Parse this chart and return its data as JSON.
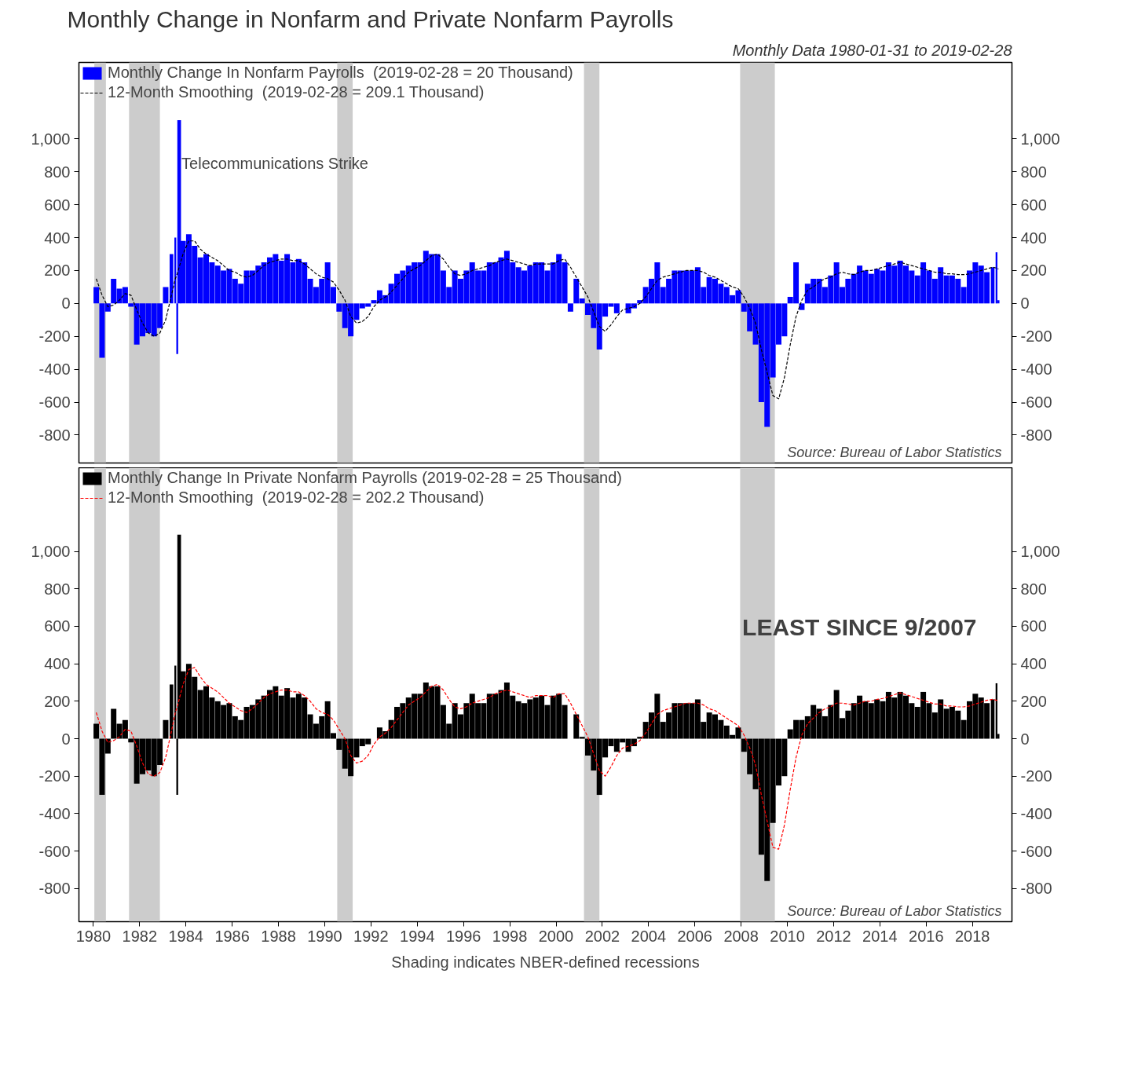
{
  "chart_data": [
    {
      "type": "bar",
      "title": "Monthly Change in Nonfarm and Private Nonfarm Payrolls",
      "subtitle": "Monthly Data 1980-01-31 to 2019-02-28",
      "x": [
        "1980-02",
        "1980-05",
        "1980-08",
        "1980-11",
        "1981-02",
        "1981-05",
        "1981-08",
        "1981-11",
        "1982-02",
        "1982-05",
        "1982-08",
        "1982-11",
        "1983-02",
        "1983-05",
        "1983-07",
        "1983-08",
        "1983-09",
        "1983-11",
        "1984-02",
        "1984-05",
        "1984-08",
        "1984-11",
        "1985-02",
        "1985-05",
        "1985-08",
        "1985-11",
        "1986-02",
        "1986-05",
        "1986-08",
        "1986-11",
        "1987-02",
        "1987-05",
        "1987-08",
        "1987-11",
        "1988-02",
        "1988-05",
        "1988-08",
        "1988-11",
        "1989-02",
        "1989-05",
        "1989-08",
        "1989-11",
        "1990-02",
        "1990-05",
        "1990-08",
        "1990-11",
        "1991-02",
        "1991-05",
        "1991-08",
        "1991-11",
        "1992-02",
        "1992-05",
        "1992-08",
        "1992-11",
        "1993-02",
        "1993-05",
        "1993-08",
        "1993-11",
        "1994-02",
        "1994-05",
        "1994-08",
        "1994-11",
        "1995-02",
        "1995-05",
        "1995-08",
        "1995-11",
        "1996-02",
        "1996-05",
        "1996-08",
        "1996-11",
        "1997-02",
        "1997-05",
        "1997-08",
        "1997-11",
        "1998-02",
        "1998-05",
        "1998-08",
        "1998-11",
        "1999-02",
        "1999-05",
        "1999-08",
        "1999-11",
        "2000-02",
        "2000-05",
        "2000-08",
        "2000-11",
        "2001-02",
        "2001-05",
        "2001-08",
        "2001-11",
        "2002-02",
        "2002-05",
        "2002-08",
        "2002-11",
        "2003-02",
        "2003-05",
        "2003-08",
        "2003-11",
        "2004-02",
        "2004-05",
        "2004-08",
        "2004-11",
        "2005-02",
        "2005-05",
        "2005-08",
        "2005-11",
        "2006-02",
        "2006-05",
        "2006-08",
        "2006-11",
        "2007-02",
        "2007-05",
        "2007-08",
        "2007-11",
        "2008-02",
        "2008-05",
        "2008-08",
        "2008-11",
        "2009-02",
        "2009-05",
        "2009-08",
        "2009-11",
        "2010-02",
        "2010-05",
        "2010-08",
        "2010-11",
        "2011-02",
        "2011-05",
        "2011-08",
        "2011-11",
        "2012-02",
        "2012-05",
        "2012-08",
        "2012-11",
        "2013-02",
        "2013-05",
        "2013-08",
        "2013-11",
        "2014-02",
        "2014-05",
        "2014-08",
        "2014-11",
        "2015-02",
        "2015-05",
        "2015-08",
        "2015-11",
        "2016-02",
        "2016-05",
        "2016-08",
        "2016-11",
        "2017-02",
        "2017-05",
        "2017-08",
        "2017-11",
        "2018-02",
        "2018-05",
        "2018-08",
        "2018-11",
        "2019-01",
        "2019-02"
      ],
      "series": [
        {
          "name": "Monthly Change In Nonfarm Payrolls  (2019-02-28 = 20 Thousand)",
          "color": "#0000ff",
          "values": [
            100,
            -330,
            -50,
            150,
            90,
            100,
            -20,
            -250,
            -200,
            -180,
            -200,
            -150,
            100,
            300,
            400,
            -308,
            1114,
            380,
            420,
            350,
            280,
            300,
            250,
            230,
            200,
            210,
            150,
            120,
            200,
            200,
            230,
            250,
            280,
            300,
            260,
            300,
            250,
            270,
            250,
            150,
            100,
            150,
            250,
            100,
            -50,
            -150,
            -200,
            -100,
            -30,
            -20,
            20,
            80,
            50,
            120,
            180,
            200,
            230,
            250,
            250,
            320,
            300,
            300,
            200,
            100,
            200,
            150,
            200,
            250,
            200,
            200,
            250,
            250,
            280,
            320,
            250,
            220,
            200,
            230,
            250,
            250,
            200,
            250,
            300,
            250,
            -50,
            150,
            30,
            -70,
            -150,
            -280,
            -80,
            -20,
            -60,
            0,
            -60,
            -30,
            20,
            100,
            150,
            250,
            100,
            150,
            200,
            200,
            200,
            200,
            220,
            100,
            160,
            150,
            120,
            100,
            50,
            80,
            -50,
            -170,
            -250,
            -600,
            -750,
            -450,
            -250,
            -200,
            40,
            250,
            -40,
            120,
            150,
            150,
            100,
            170,
            250,
            100,
            150,
            180,
            230,
            200,
            180,
            210,
            200,
            250,
            230,
            260,
            230,
            200,
            170,
            250,
            200,
            150,
            220,
            170,
            170,
            150,
            100,
            200,
            250,
            230,
            190,
            220,
            311,
            20
          ]
        },
        {
          "name": "12-Month Smoothing  (2019-02-28 = 209.1 Thousand)",
          "type": "line",
          "line_style": "dashed",
          "color": "#000000",
          "values": [
            150,
            50,
            -20,
            -10,
            20,
            60,
            50,
            -40,
            -120,
            -180,
            -200,
            -180,
            -100,
            50,
            150,
            180,
            220,
            300,
            380,
            380,
            330,
            300,
            280,
            260,
            230,
            200,
            190,
            170,
            160,
            170,
            200,
            230,
            250,
            260,
            270,
            270,
            260,
            260,
            240,
            210,
            180,
            160,
            150,
            130,
            80,
            20,
            -80,
            -120,
            -110,
            -80,
            -20,
            20,
            40,
            70,
            110,
            150,
            190,
            210,
            230,
            260,
            290,
            300,
            270,
            220,
            180,
            170,
            180,
            200,
            210,
            220,
            230,
            250,
            260,
            270,
            260,
            250,
            240,
            230,
            240,
            240,
            240,
            240,
            260,
            270,
            220,
            160,
            100,
            40,
            -50,
            -140,
            -170,
            -130,
            -80,
            -40,
            -30,
            -20,
            0,
            40,
            90,
            140,
            160,
            170,
            180,
            190,
            200,
            200,
            200,
            190,
            170,
            160,
            140,
            120,
            100,
            90,
            40,
            -30,
            -120,
            -280,
            -420,
            -560,
            -580,
            -450,
            -250,
            -80,
            20,
            80,
            100,
            130,
            150,
            160,
            180,
            190,
            180,
            175,
            190,
            200,
            200,
            210,
            220,
            230,
            240,
            250,
            240,
            230,
            220,
            210,
            200,
            190,
            190,
            180,
            180,
            175,
            175,
            180,
            190,
            200,
            210,
            220,
            215,
            209.1
          ]
        }
      ],
      "xlim": [
        "1979-05",
        "2019-09"
      ],
      "xticks": [
        "1980",
        "1982",
        "1984",
        "1986",
        "1988",
        "1990",
        "1992",
        "1994",
        "1996",
        "1998",
        "2000",
        "2002",
        "2004",
        "2006",
        "2008",
        "2010",
        "2012",
        "2014",
        "2016",
        "2018"
      ],
      "ylim": [
        -970,
        1465
      ],
      "yticks": [
        -800,
        -600,
        -400,
        -200,
        0,
        200,
        400,
        600,
        800,
        {
          "value": 1000,
          "label": "1,000"
        }
      ],
      "y2lim": [
        -970,
        1465
      ],
      "y2ticks": [
        -800,
        -600,
        -400,
        -200,
        0,
        200,
        400,
        600,
        800,
        {
          "value": 1000,
          "label": "1,000"
        }
      ],
      "tick_labels": "y",
      "legend": "top left",
      "grid": false,
      "bands": [
        {
          "axis": "x",
          "from": "1980-01",
          "to": "1980-07",
          "color": "#cccccc"
        },
        {
          "axis": "x",
          "from": "1981-07",
          "to": "1982-11",
          "color": "#cccccc"
        },
        {
          "axis": "x",
          "from": "1990-07",
          "to": "1991-03",
          "color": "#cccccc"
        },
        {
          "axis": "x",
          "from": "2001-03",
          "to": "2001-11",
          "color": "#cccccc"
        },
        {
          "axis": "x",
          "from": "2007-12",
          "to": "2009-06",
          "color": "#cccccc"
        }
      ],
      "annotations": [
        {
          "text": "Telecommunications Strike",
          "x": "1983-09",
          "y": 1114
        },
        "Source:  Bureau of Labor Statistics"
      ]
    },
    {
      "type": "bar",
      "x": [
        "1980-02",
        "1980-05",
        "1980-08",
        "1980-11",
        "1981-02",
        "1981-05",
        "1981-08",
        "1981-11",
        "1982-02",
        "1982-05",
        "1982-08",
        "1982-11",
        "1983-02",
        "1983-05",
        "1983-07",
        "1983-08",
        "1983-09",
        "1983-11",
        "1984-02",
        "1984-05",
        "1984-08",
        "1984-11",
        "1985-02",
        "1985-05",
        "1985-08",
        "1985-11",
        "1986-02",
        "1986-05",
        "1986-08",
        "1986-11",
        "1987-02",
        "1987-05",
        "1987-08",
        "1987-11",
        "1988-02",
        "1988-05",
        "1988-08",
        "1988-11",
        "1989-02",
        "1989-05",
        "1989-08",
        "1989-11",
        "1990-02",
        "1990-05",
        "1990-08",
        "1990-11",
        "1991-02",
        "1991-05",
        "1991-08",
        "1991-11",
        "1992-02",
        "1992-05",
        "1992-08",
        "1992-11",
        "1993-02",
        "1993-05",
        "1993-08",
        "1993-11",
        "1994-02",
        "1994-05",
        "1994-08",
        "1994-11",
        "1995-02",
        "1995-05",
        "1995-08",
        "1995-11",
        "1996-02",
        "1996-05",
        "1996-08",
        "1996-11",
        "1997-02",
        "1997-05",
        "1997-08",
        "1997-11",
        "1998-02",
        "1998-05",
        "1998-08",
        "1998-11",
        "1999-02",
        "1999-05",
        "1999-08",
        "1999-11",
        "2000-02",
        "2000-05",
        "2000-08",
        "2000-11",
        "2001-02",
        "2001-05",
        "2001-08",
        "2001-11",
        "2002-02",
        "2002-05",
        "2002-08",
        "2002-11",
        "2003-02",
        "2003-05",
        "2003-08",
        "2003-11",
        "2004-02",
        "2004-05",
        "2004-08",
        "2004-11",
        "2005-02",
        "2005-05",
        "2005-08",
        "2005-11",
        "2006-02",
        "2006-05",
        "2006-08",
        "2006-11",
        "2007-02",
        "2007-05",
        "2007-08",
        "2007-11",
        "2008-02",
        "2008-05",
        "2008-08",
        "2008-11",
        "2009-02",
        "2009-05",
        "2009-08",
        "2009-11",
        "2010-02",
        "2010-05",
        "2010-08",
        "2010-11",
        "2011-02",
        "2011-05",
        "2011-08",
        "2011-11",
        "2012-02",
        "2012-05",
        "2012-08",
        "2012-11",
        "2013-02",
        "2013-05",
        "2013-08",
        "2013-11",
        "2014-02",
        "2014-05",
        "2014-08",
        "2014-11",
        "2015-02",
        "2015-05",
        "2015-08",
        "2015-11",
        "2016-02",
        "2016-05",
        "2016-08",
        "2016-11",
        "2017-02",
        "2017-05",
        "2017-08",
        "2017-11",
        "2018-02",
        "2018-05",
        "2018-08",
        "2018-11",
        "2019-01",
        "2019-02"
      ],
      "series": [
        {
          "name": "Monthly Change In Private Nonfarm Payrolls (2019-02-28 = 25 Thousand)",
          "color": "#000000",
          "values": [
            80,
            -300,
            -80,
            160,
            80,
            100,
            -20,
            -240,
            -190,
            -170,
            -200,
            -140,
            100,
            290,
            390,
            -300,
            1090,
            360,
            400,
            330,
            260,
            280,
            220,
            200,
            180,
            190,
            120,
            100,
            170,
            180,
            210,
            230,
            260,
            280,
            230,
            270,
            220,
            240,
            220,
            130,
            80,
            120,
            200,
            30,
            -60,
            -160,
            -200,
            -100,
            -40,
            -30,
            0,
            60,
            40,
            100,
            170,
            190,
            220,
            240,
            240,
            300,
            280,
            280,
            180,
            80,
            190,
            130,
            190,
            240,
            190,
            190,
            240,
            240,
            260,
            300,
            230,
            200,
            190,
            210,
            220,
            230,
            180,
            230,
            240,
            180,
            0,
            130,
            10,
            -90,
            -170,
            -300,
            -100,
            -40,
            -70,
            -20,
            -70,
            -40,
            10,
            90,
            140,
            240,
            90,
            140,
            190,
            190,
            190,
            190,
            210,
            90,
            140,
            130,
            100,
            70,
            20,
            60,
            -70,
            -190,
            -270,
            -620,
            -760,
            -450,
            -250,
            -200,
            50,
            100,
            100,
            120,
            180,
            160,
            120,
            180,
            260,
            110,
            150,
            190,
            230,
            200,
            190,
            210,
            200,
            250,
            220,
            250,
            230,
            190,
            170,
            250,
            190,
            140,
            210,
            160,
            170,
            150,
            100,
            200,
            240,
            220,
            190,
            210,
            296,
            25
          ]
        },
        {
          "name": "12-Month Smoothing  (2019-02-28 = 202.2 Thousand)",
          "type": "line",
          "line_style": "dashed",
          "color": "#ff0000",
          "values": [
            140,
            40,
            -20,
            -10,
            10,
            50,
            40,
            -40,
            -130,
            -190,
            -200,
            -180,
            -100,
            40,
            140,
            170,
            210,
            290,
            370,
            380,
            330,
            290,
            270,
            250,
            220,
            190,
            170,
            150,
            140,
            160,
            190,
            220,
            240,
            250,
            260,
            260,
            250,
            250,
            230,
            200,
            160,
            140,
            130,
            100,
            50,
            0,
            -90,
            -130,
            -120,
            -90,
            -30,
            10,
            30,
            60,
            100,
            140,
            180,
            200,
            220,
            250,
            280,
            290,
            260,
            210,
            170,
            160,
            170,
            190,
            200,
            210,
            220,
            240,
            250,
            260,
            250,
            240,
            230,
            220,
            230,
            230,
            230,
            220,
            240,
            240,
            190,
            130,
            70,
            10,
            -80,
            -170,
            -200,
            -150,
            -90,
            -50,
            -40,
            -30,
            -10,
            30,
            80,
            130,
            150,
            160,
            170,
            180,
            190,
            190,
            190,
            180,
            160,
            150,
            130,
            110,
            90,
            70,
            20,
            -50,
            -140,
            -300,
            -440,
            -580,
            -590,
            -460,
            -270,
            -100,
            20,
            80,
            110,
            140,
            160,
            170,
            190,
            190,
            185,
            180,
            190,
            200,
            200,
            210,
            215,
            225,
            235,
            245,
            235,
            225,
            215,
            205,
            195,
            185,
            185,
            175,
            175,
            170,
            170,
            175,
            185,
            195,
            205,
            210,
            205,
            202.2
          ]
        }
      ],
      "xlim": [
        "1979-05",
        "2019-09"
      ],
      "xticks": [
        "1980",
        "1982",
        "1984",
        "1986",
        "1988",
        "1990",
        "1992",
        "1994",
        "1996",
        "1998",
        "2000",
        "2002",
        "2004",
        "2006",
        "2008",
        "2010",
        "2012",
        "2014",
        "2016",
        "2018"
      ],
      "ylim": [
        -977,
        1447
      ],
      "yticks": [
        -800,
        -600,
        -400,
        -200,
        0,
        200,
        400,
        600,
        800,
        {
          "value": 1000,
          "label": "1,000"
        }
      ],
      "y2lim": [
        -977,
        1447
      ],
      "y2ticks": [
        -800,
        -600,
        -400,
        -200,
        0,
        200,
        400,
        600,
        800,
        {
          "value": 1000,
          "label": "1,000"
        }
      ],
      "legend": "top left",
      "grid": false,
      "bands": [
        {
          "axis": "x",
          "from": "1980-01",
          "to": "1980-07",
          "color": "#cccccc"
        },
        {
          "axis": "x",
          "from": "1981-07",
          "to": "1982-11",
          "color": "#cccccc"
        },
        {
          "axis": "x",
          "from": "1990-07",
          "to": "1991-03",
          "color": "#cccccc"
        },
        {
          "axis": "x",
          "from": "2001-03",
          "to": "2001-11",
          "color": "#cccccc"
        },
        {
          "axis": "x",
          "from": "2007-12",
          "to": "2009-06",
          "color": "#cccccc"
        }
      ],
      "annotations": [
        "Source:  Bureau of Labor Statistics",
        "LEAST SINCE 9/2007",
        "Shading indicates NBER-defined recessions"
      ]
    }
  ]
}
